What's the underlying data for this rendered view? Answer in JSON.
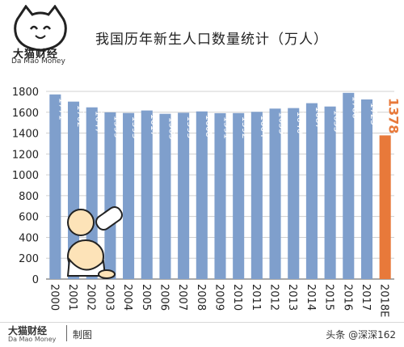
{
  "brand": {
    "name_cn": "大猫财经",
    "name_en": "Da Mao Money",
    "made_by": "制图"
  },
  "watermark": "头条 @深深162",
  "colors": {
    "bar": "#7f9fcc",
    "highlight": "#e8793a",
    "grid": "#d0d0d0"
  },
  "chart_data": {
    "type": "bar",
    "title": "我国历年新生人口数量统计（万人）",
    "categories": [
      "2000",
      "2001",
      "2002",
      "2003",
      "2004",
      "2005",
      "2006",
      "2007",
      "2008",
      "2009",
      "2010",
      "2011",
      "2012",
      "2013",
      "2014",
      "2015",
      "2016",
      "2017",
      "2018E"
    ],
    "values": [
      1771,
      1702,
      1647,
      1599,
      1593,
      1617,
      1585,
      1595,
      1608,
      1591,
      1592,
      1604,
      1635,
      1640,
      1687,
      1655,
      1786,
      1723,
      1378
    ],
    "data_labels": [
      "1771",
      "1702",
      "1647",
      "1599",
      "1593",
      "1617",
      "1585",
      "1595",
      "1608",
      "1591",
      "1592",
      "1604",
      "1635",
      "1640",
      "1687",
      "1655",
      "1786",
      "1723",
      "1378"
    ],
    "highlight_index": 18,
    "ylim": [
      0,
      1800
    ],
    "yticks": [
      0,
      200,
      400,
      600,
      800,
      1000,
      1200,
      1400,
      1600,
      1800
    ],
    "xlabel": "",
    "ylabel": "",
    "grid": true
  }
}
